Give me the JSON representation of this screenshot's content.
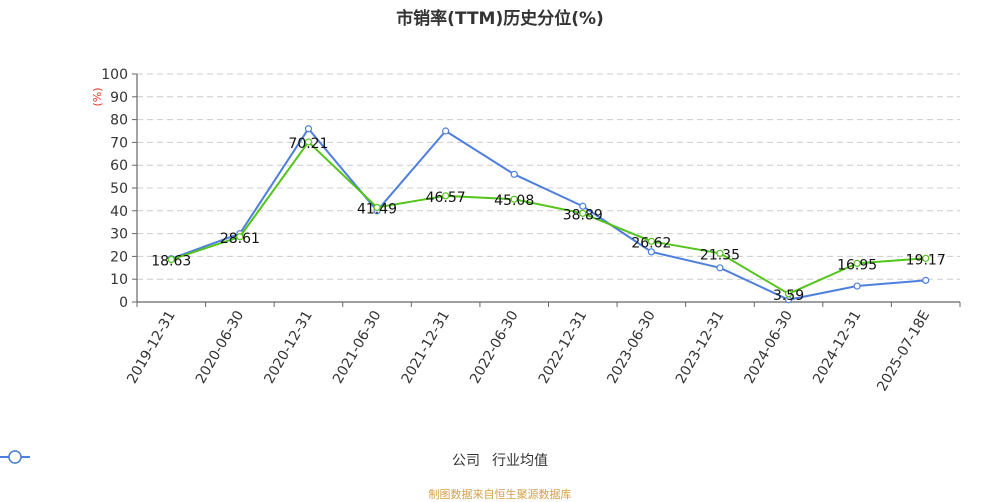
{
  "chart_data": {
    "type": "line",
    "title": "市销率(TTM)历史分位(%)",
    "xlabel": "",
    "ylabel": "(%)",
    "ylim": [
      0,
      100
    ],
    "yticks": [
      0,
      10,
      20,
      30,
      40,
      50,
      60,
      70,
      80,
      90,
      100
    ],
    "grid": true,
    "legend_position": "bottom",
    "categories": [
      "2019-12-31",
      "2020-06-30",
      "2020-12-31",
      "2021-06-30",
      "2021-12-31",
      "2022-06-30",
      "2022-12-31",
      "2023-06-30",
      "2023-12-31",
      "2024-06-30",
      "2024-12-31",
      "2025-07-18E"
    ],
    "series": [
      {
        "name": "公司",
        "color": "#52c41a",
        "values": [
          18.63,
          28.61,
          70.21,
          41.49,
          46.57,
          45.08,
          38.89,
          26.62,
          21.35,
          3.59,
          16.95,
          19.17
        ],
        "labels_shown": true
      },
      {
        "name": "行业均值",
        "color": "#4e7fdc",
        "values": [
          19,
          30,
          76,
          40,
          75,
          56,
          42,
          22,
          15,
          1,
          7,
          9.5
        ],
        "labels_shown": false
      }
    ],
    "source": "制图数据来自恒生聚源数据库"
  },
  "colors": {
    "company": "#52c41a",
    "industry": "#4e7fdc",
    "ylabel": "#e8352b",
    "source": "#d4a04a",
    "axis": "#666666",
    "grid": "#cccccc"
  }
}
